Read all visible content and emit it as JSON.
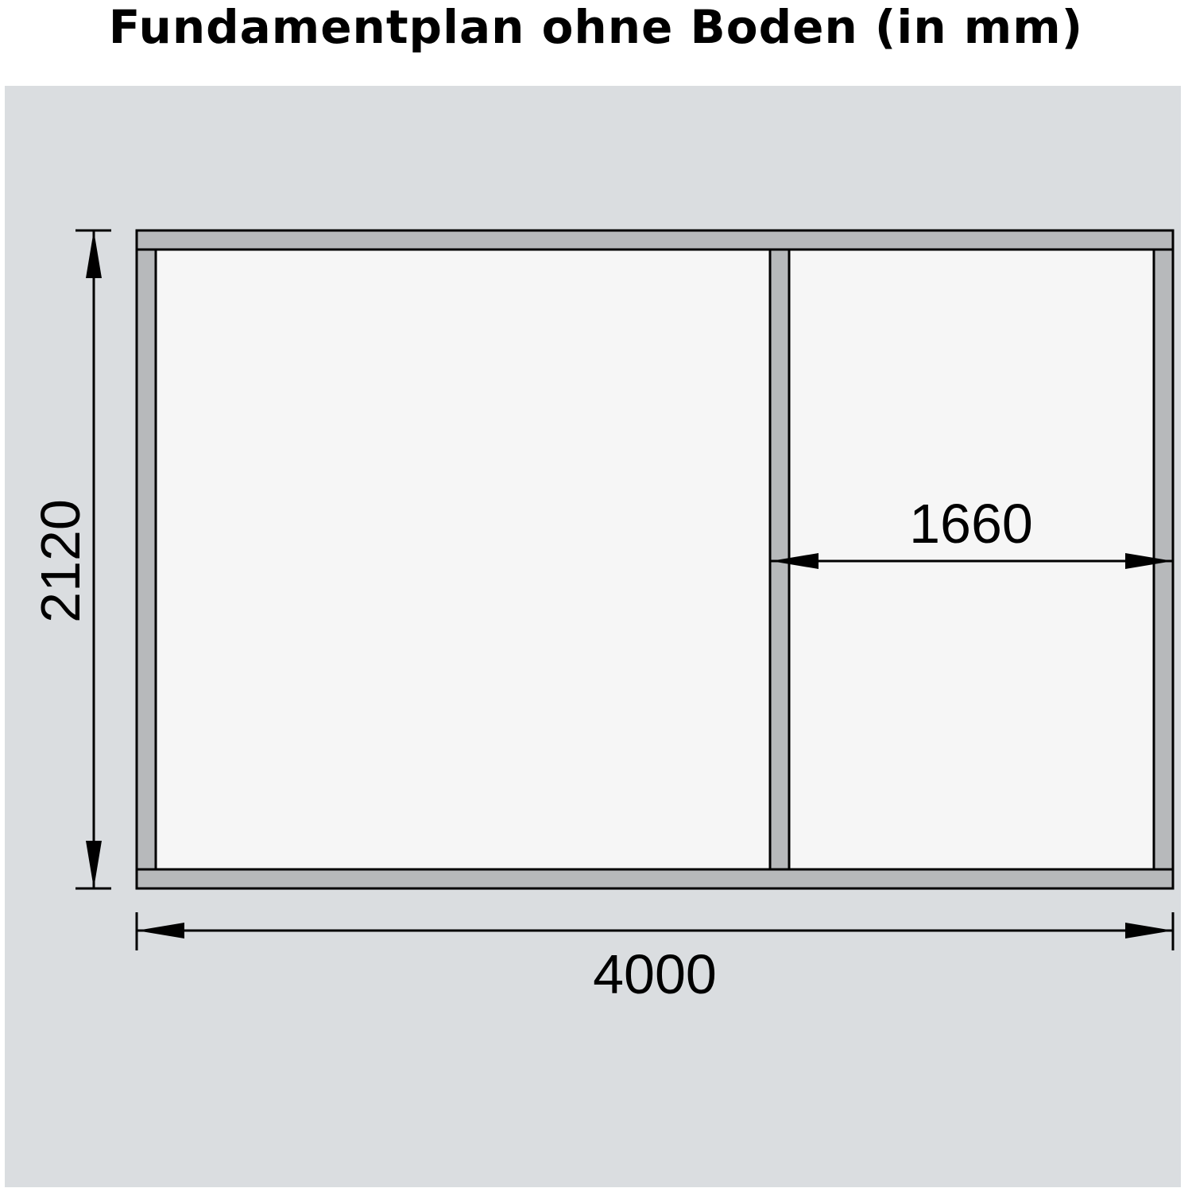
{
  "title": "Fundamentplan ohne Boden (in mm)",
  "dimensions": {
    "overall_width": "4000",
    "overall_depth": "2120",
    "partition_width": "1660"
  },
  "colors": {
    "background_panel": "#dadde0",
    "beam_fill": "#b7b9bb",
    "interior_fill": "#f6f6f6",
    "line": "#000000"
  }
}
